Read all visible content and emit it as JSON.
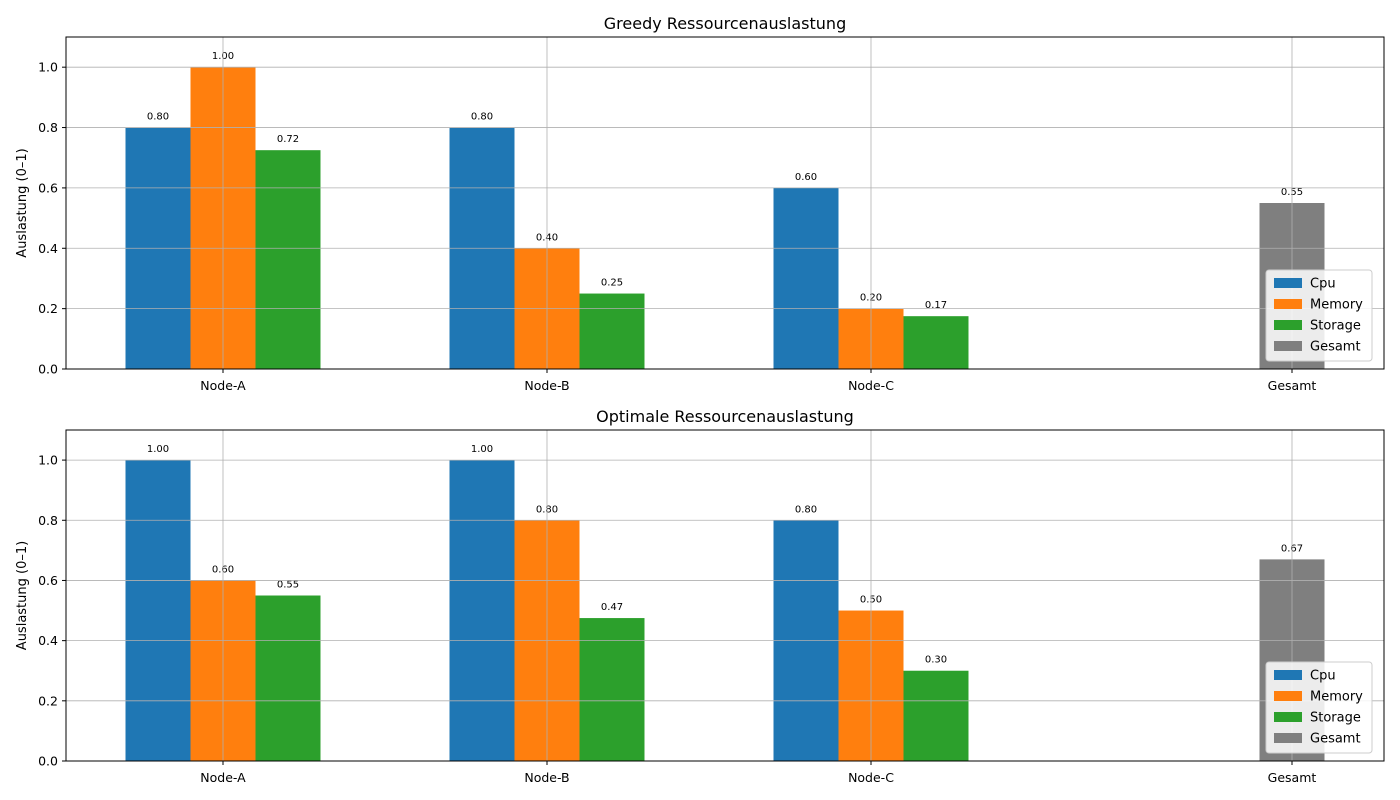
{
  "chart_data": [
    {
      "type": "bar",
      "title": "Greedy Ressourcenauslastung",
      "ylabel": "Auslastung (0–1)",
      "xlabel": "",
      "ylim": [
        0,
        1.1
      ],
      "yticks": [
        "0.0",
        "0.2",
        "0.4",
        "0.6",
        "0.8",
        "1.0"
      ],
      "grid": true,
      "legend_position": "lower-right",
      "categories": [
        "Node-A",
        "Node-B",
        "Node-C",
        "Gesamt"
      ],
      "series": [
        {
          "name": "Cpu",
          "color": "#1f77b4",
          "values": [
            0.8,
            0.8,
            0.6,
            null
          ],
          "labels": [
            "0.80",
            "0.80",
            "0.60",
            null
          ]
        },
        {
          "name": "Memory",
          "color": "#ff7f0e",
          "values": [
            1.0,
            0.4,
            0.2,
            null
          ],
          "labels": [
            "1.00",
            "0.40",
            "0.20",
            null
          ]
        },
        {
          "name": "Storage",
          "color": "#2ca02c",
          "values": [
            0.725,
            0.25,
            0.175,
            null
          ],
          "labels": [
            "0.72",
            "0.25",
            "0.17",
            null
          ]
        },
        {
          "name": "Gesamt",
          "color": "#7f7f7f",
          "values": [
            null,
            null,
            null,
            0.55
          ],
          "labels": [
            null,
            null,
            null,
            "0.55"
          ]
        }
      ]
    },
    {
      "type": "bar",
      "title": "Optimale Ressourcenauslastung",
      "ylabel": "Auslastung (0–1)",
      "xlabel": "",
      "ylim": [
        0,
        1.1
      ],
      "yticks": [
        "0.0",
        "0.2",
        "0.4",
        "0.6",
        "0.8",
        "1.0"
      ],
      "grid": true,
      "legend_position": "lower-right",
      "categories": [
        "Node-A",
        "Node-B",
        "Node-C",
        "Gesamt"
      ],
      "series": [
        {
          "name": "Cpu",
          "color": "#1f77b4",
          "values": [
            1.0,
            1.0,
            0.8,
            null
          ],
          "labels": [
            "1.00",
            "1.00",
            "0.80",
            null
          ]
        },
        {
          "name": "Memory",
          "color": "#ff7f0e",
          "values": [
            0.6,
            0.8,
            0.5,
            null
          ],
          "labels": [
            "0.60",
            "0.80",
            "0.50",
            null
          ]
        },
        {
          "name": "Storage",
          "color": "#2ca02c",
          "values": [
            0.55,
            0.475,
            0.3,
            null
          ],
          "labels": [
            "0.55",
            "0.47",
            "0.30",
            null
          ]
        },
        {
          "name": "Gesamt",
          "color": "#7f7f7f",
          "values": [
            null,
            null,
            null,
            0.67
          ],
          "labels": [
            null,
            null,
            null,
            "0.67"
          ]
        }
      ]
    }
  ]
}
